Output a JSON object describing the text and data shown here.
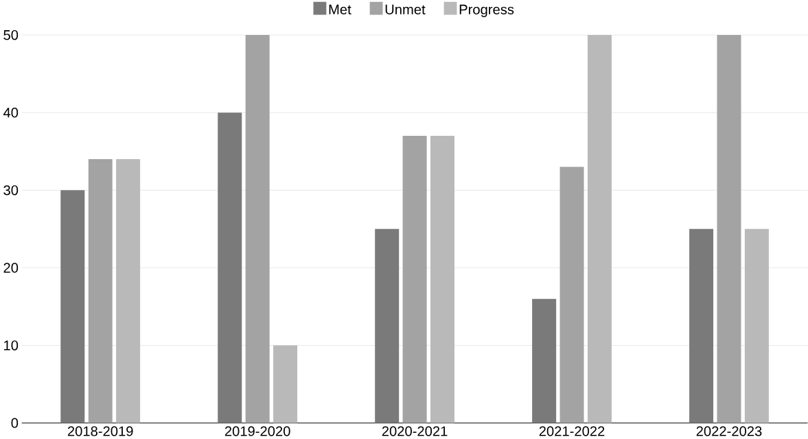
{
  "chart_data": {
    "type": "bar",
    "categories": [
      "2018-2019",
      "2019-2020",
      "2020-2021",
      "2021-2022",
      "2022-2023"
    ],
    "series": [
      {
        "name": "Met",
        "color": "#7a7a7a",
        "values": [
          30,
          40,
          25,
          16,
          25
        ]
      },
      {
        "name": "Unmet",
        "color": "#a3a3a3",
        "values": [
          34,
          50,
          37,
          33,
          50
        ]
      },
      {
        "name": "Progress",
        "color": "#b9b9b9",
        "values": [
          34,
          10,
          37,
          50,
          25
        ]
      }
    ],
    "ylim": [
      0,
      50
    ],
    "yticks": [
      0,
      10,
      20,
      30,
      40,
      50
    ],
    "grid": "y",
    "legend": "top"
  }
}
